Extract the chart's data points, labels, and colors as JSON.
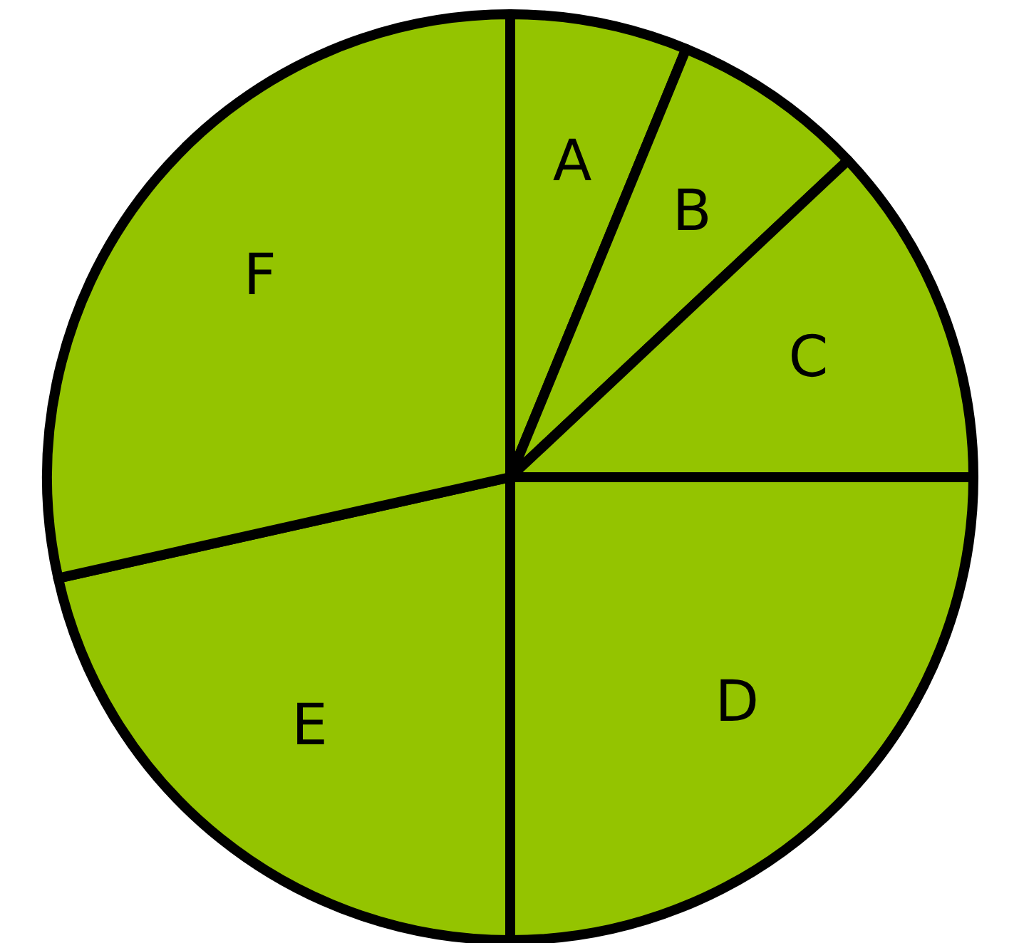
{
  "chart_data": {
    "type": "pie",
    "categories": [
      "A",
      "B",
      "C",
      "D",
      "E",
      "F"
    ],
    "values": [
      6.2,
      6.8,
      12.0,
      25.0,
      21.5,
      28.5
    ],
    "colors": [
      "#94c400",
      "#94c400",
      "#94c400",
      "#94c400",
      "#94c400",
      "#94c400"
    ],
    "legend": false
  }
}
